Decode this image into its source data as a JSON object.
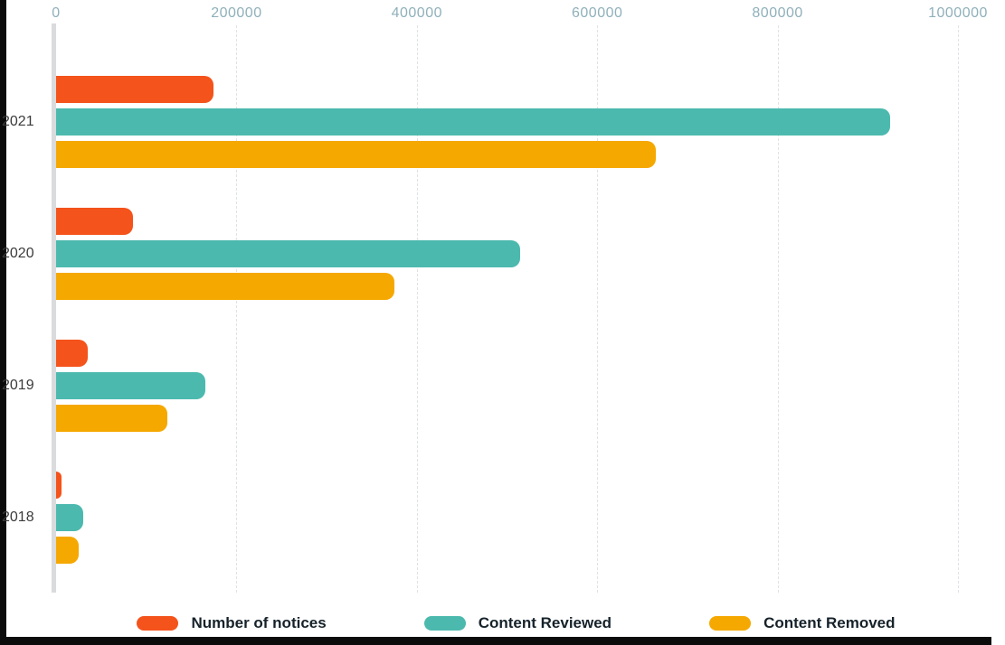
{
  "chart_data": {
    "type": "bar",
    "orientation": "horizontal",
    "title": "",
    "categories": [
      "2021",
      "2020",
      "2019",
      "2018"
    ],
    "series": [
      {
        "name": "Number of notices",
        "color": "#f4531b",
        "values": [
          175000,
          85000,
          35000,
          6000
        ]
      },
      {
        "name": "Content Reviewed",
        "color": "#4cb9ae",
        "values": [
          925000,
          515000,
          165000,
          30000
        ]
      },
      {
        "name": "Content Removed",
        "color": "#f5a800",
        "values": [
          665000,
          375000,
          123000,
          25000
        ]
      }
    ],
    "x_axis": {
      "position": "top",
      "max": 1000000,
      "ticks": [
        0,
        200000,
        400000,
        600000,
        800000,
        1000000
      ],
      "tick_labels": [
        "0",
        "200000",
        "400000",
        "600000",
        "800000",
        "1000000"
      ]
    },
    "grid": true,
    "legend_position": "bottom",
    "legend": [
      "Number of notices",
      "Content Reviewed",
      "Content Removed"
    ]
  },
  "colors": {
    "tick_label": "#8fb0ba",
    "year_label": "#3b3b3b",
    "axis_line": "#d9dbdc",
    "gridline": "#dfe3e6",
    "frame_edge": "#0b0b0b",
    "legend_text": "#16222a",
    "background": "#ffffff"
  }
}
